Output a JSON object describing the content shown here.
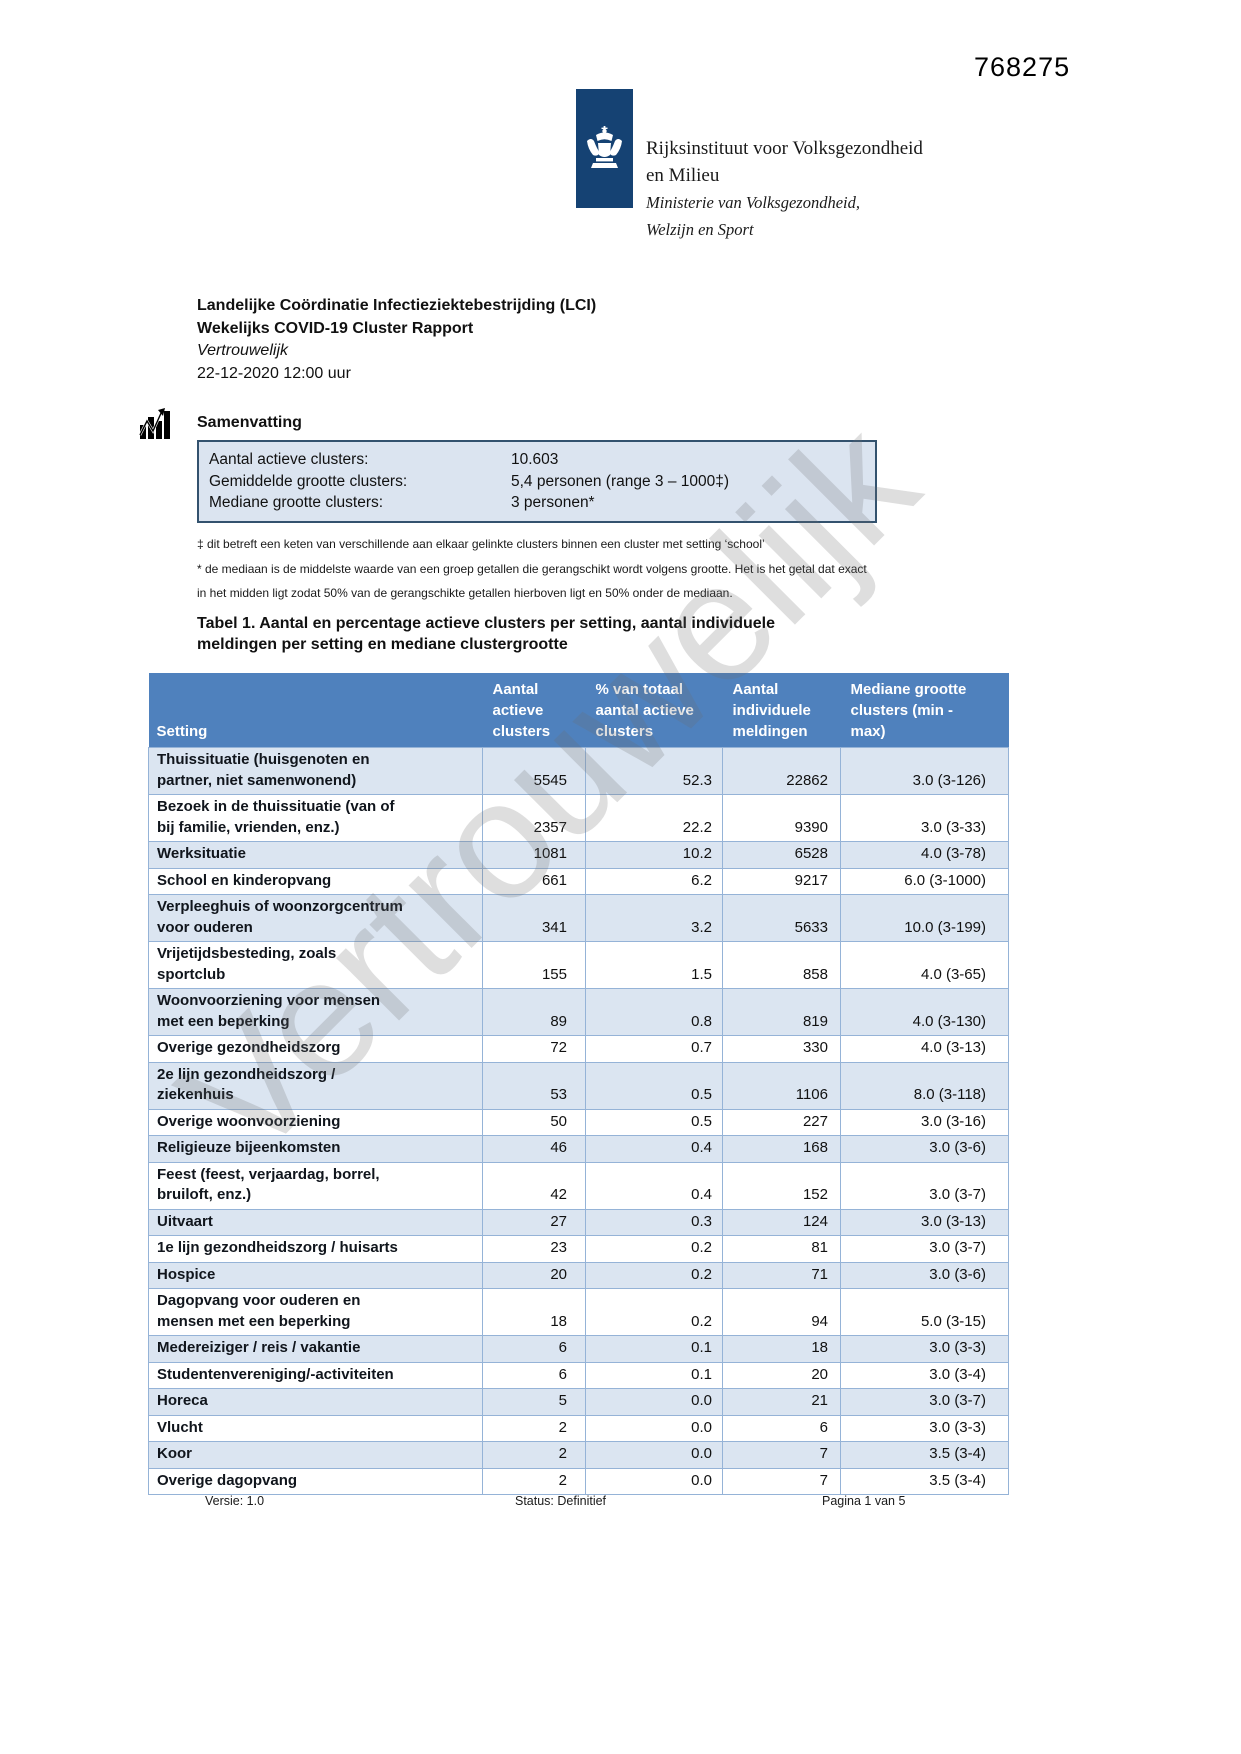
{
  "page_number_stamp": "768275",
  "watermark": "Vertrouwelijk",
  "logo": {
    "institute_line1": "Rijksinstituut voor Volksgezondheid",
    "institute_line2": "en Milieu",
    "ministry_line1": "Ministerie van Volksgezondheid,",
    "ministry_line2": "Welzijn en Sport"
  },
  "title_block": {
    "line1": "Landelijke Coördinatie Infectieziektebestrijding (LCI)",
    "line2": "Wekelijks COVID-19 Cluster Rapport",
    "line3": "Vertrouwelijk",
    "line4": "22-12-2020 12:00 uur"
  },
  "summary": {
    "heading": "Samenvatting",
    "icon": "statistics-icon",
    "items": [
      {
        "label": "Aantal actieve clusters:",
        "value": "10.603"
      },
      {
        "label": "Gemiddelde grootte clusters:",
        "value": "5,4 personen (range 3 – 1000‡)"
      },
      {
        "label": "Mediane grootte clusters:",
        "value": "3 personen*"
      }
    ]
  },
  "footnotes": [
    "‡ dit betreft een keten van verschillende aan elkaar gelinkte clusters binnen een cluster met setting ‘school’",
    "* de mediaan is de middelste waarde van een groep getallen die gerangschikt wordt volgens grootte. Het is het getal dat exact",
    "in het midden ligt zodat 50% van de gerangschikte getallen hierboven ligt en 50% onder de mediaan."
  ],
  "table": {
    "caption": "Tabel 1. Aantal en percentage actieve clusters per setting, aantal individuele\nmeldingen per setting en mediane clustergrootte",
    "columns": [
      "Setting",
      "Aantal\nactieve\nclusters",
      "% van totaal\naantal actieve\nclusters",
      "Aantal\nindividuele\nmeldingen",
      "Mediane grootte\nclusters (min -\nmax)"
    ],
    "rows": [
      [
        "Thuissituatie (huisgenoten en\npartner, niet samenwonend)",
        "5545",
        "52.3",
        "22862",
        "3.0 (3-126)"
      ],
      [
        "Bezoek in de thuissituatie (van of\nbij familie, vrienden, enz.)",
        "2357",
        "22.2",
        "9390",
        "3.0 (3-33)"
      ],
      [
        "Werksituatie",
        "1081",
        "10.2",
        "6528",
        "4.0 (3-78)"
      ],
      [
        "School en kinderopvang",
        "661",
        "6.2",
        "9217",
        "6.0 (3-1000)"
      ],
      [
        "Verpleeghuis of woonzorgcentrum\nvoor ouderen",
        "341",
        "3.2",
        "5633",
        "10.0 (3-199)"
      ],
      [
        "Vrijetijdsbesteding, zoals\nsportclub",
        "155",
        "1.5",
        "858",
        "4.0 (3-65)"
      ],
      [
        "Woonvoorziening voor mensen\nmet een beperking",
        "89",
        "0.8",
        "819",
        "4.0 (3-130)"
      ],
      [
        "Overige gezondheidszorg",
        "72",
        "0.7",
        "330",
        "4.0 (3-13)"
      ],
      [
        "2e lijn gezondheidszorg /\nziekenhuis",
        "53",
        "0.5",
        "1106",
        "8.0 (3-118)"
      ],
      [
        "Overige woonvoorziening",
        "50",
        "0.5",
        "227",
        "3.0 (3-16)"
      ],
      [
        "Religieuze bijeenkomsten",
        "46",
        "0.4",
        "168",
        "3.0 (3-6)"
      ],
      [
        "Feest (feest, verjaardag, borrel,\nbruiloft, enz.)",
        "42",
        "0.4",
        "152",
        "3.0 (3-7)"
      ],
      [
        "Uitvaart",
        "27",
        "0.3",
        "124",
        "3.0 (3-13)"
      ],
      [
        "1e lijn gezondheidszorg / huisarts",
        "23",
        "0.2",
        "81",
        "3.0 (3-7)"
      ],
      [
        "Hospice",
        "20",
        "0.2",
        "71",
        "3.0 (3-6)"
      ],
      [
        "Dagopvang voor ouderen en\nmensen met een beperking",
        "18",
        "0.2",
        "94",
        "5.0 (3-15)"
      ],
      [
        "Medereiziger / reis / vakantie",
        "6",
        "0.1",
        "18",
        "3.0 (3-3)"
      ],
      [
        "Studentenvereniging/-activiteiten",
        "6",
        "0.1",
        "20",
        "3.0 (3-4)"
      ],
      [
        "Horeca",
        "5",
        "0.0",
        "21",
        "3.0 (3-7)"
      ],
      [
        "Vlucht",
        "2",
        "0.0",
        "6",
        "3.0 (3-3)"
      ],
      [
        "Koor",
        "2",
        "0.0",
        "7",
        "3.5 (3-4)"
      ],
      [
        "Overige dagopvang",
        "2",
        "0.0",
        "7",
        "3.5 (3-4)"
      ]
    ]
  },
  "footer": {
    "version": "Versie: 1.0",
    "status": "Status: Definitief",
    "page": "Pagina 1 van 5"
  },
  "colors": {
    "logo_blue": "#154273",
    "table_header_blue": "#4f81bd",
    "table_alt_row": "#dbe5f1",
    "table_border": "#95b3d7",
    "summary_box_fill": "#dbe4f0",
    "summary_box_border": "#33526e",
    "watermark_gray": "#6e6e6e"
  }
}
